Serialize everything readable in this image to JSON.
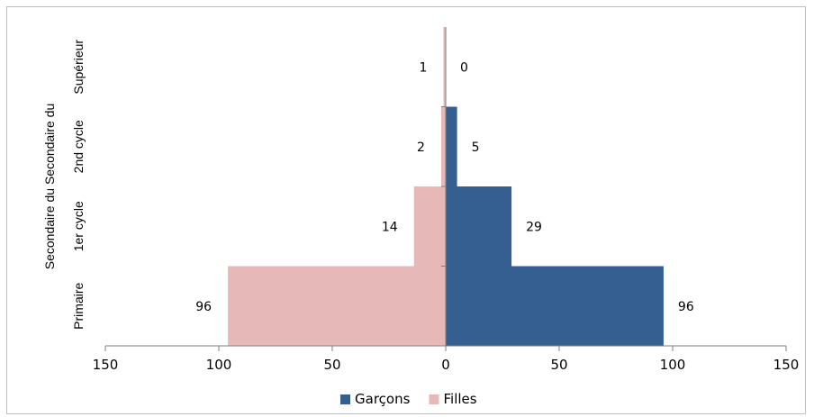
{
  "chart_data": {
    "type": "bar",
    "orientation": "horizontal",
    "layout": "population-pyramid",
    "categories": [
      "Primaire",
      "1er cycle",
      "2nd cycle",
      "Supérieur"
    ],
    "category_group_label": "Secondaire du Secondaire du",
    "series": [
      {
        "name": "Garçons",
        "values": [
          96,
          29,
          5,
          0
        ],
        "color": "#355f91",
        "side": "right"
      },
      {
        "name": "Filles",
        "values": [
          96,
          14,
          2,
          1
        ],
        "color": "#e6b9b8",
        "side": "left"
      }
    ],
    "xlim": [
      -150,
      150
    ],
    "x_ticks": [
      -150,
      -100,
      -50,
      0,
      50,
      100,
      150
    ],
    "x_tick_labels": [
      "150",
      "100",
      "50",
      "0",
      "50",
      "100",
      "150"
    ],
    "grid": false,
    "legend_position": "bottom",
    "title": "",
    "xlabel": "",
    "ylabel": ""
  }
}
